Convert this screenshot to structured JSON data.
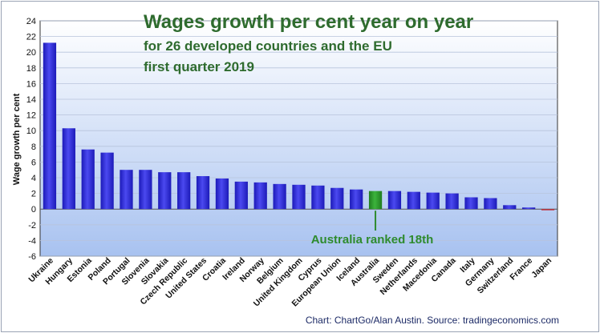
{
  "chart_data": {
    "type": "bar",
    "title": "Wages growth per cent year on year",
    "subtitle_line1": "for 26 developed countries and the EU",
    "subtitle_line2": "first quarter 2019",
    "ylabel": "Wage growth per cent",
    "xlabel": "",
    "ylim": [
      -6,
      24
    ],
    "yticks": [
      -6,
      -4,
      -2,
      0,
      2,
      4,
      6,
      8,
      10,
      12,
      14,
      16,
      18,
      20,
      22,
      24
    ],
    "grid": true,
    "categories": [
      "Ukraine",
      "Hungary",
      "Estonia",
      "Poland",
      "Portugal",
      "Slovenia",
      "Slovakia",
      "Czech Republic",
      "United States",
      "Croatia",
      "Ireland",
      "Norway",
      "Belgium",
      "United Kingdom",
      "Cyprus",
      "European Union",
      "Iceland",
      "Australia",
      "Sweden",
      "Netherlands",
      "Macedonia",
      "Canada",
      "Italy",
      "Germany",
      "Switzerland",
      "France",
      "Japan"
    ],
    "values": [
      21.2,
      10.3,
      7.6,
      7.2,
      5.0,
      5.0,
      4.7,
      4.7,
      4.2,
      3.9,
      3.5,
      3.4,
      3.2,
      3.1,
      3.0,
      2.7,
      2.5,
      2.3,
      2.3,
      2.2,
      2.1,
      2.0,
      1.5,
      1.4,
      0.5,
      0.2,
      -0.1
    ],
    "highlight": "Australia",
    "annotation": "Australia ranked 18th",
    "source": "Chart: ChartGo/Alan Austin. Source: tradingeconomics.com",
    "colors": {
      "bar": "#2a28d8",
      "bar_light": "#5c5cf4",
      "highlight": "#2f9a2f",
      "negative": "#c0303c",
      "plot_top": "#ffffff",
      "plot_bottom": "#a8c2f0",
      "title": "#2e6b2e",
      "annotation": "#2e8b2e",
      "source": "#1c2a66"
    }
  }
}
